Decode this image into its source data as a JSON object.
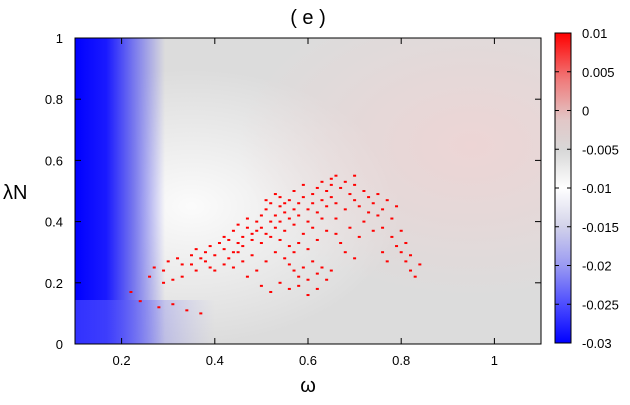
{
  "chart_data": {
    "type": "heatmap",
    "title": "( e )",
    "xlabel": "ω",
    "ylabel": "λN",
    "xlim": [
      0.1,
      1.1
    ],
    "ylim": [
      0,
      1
    ],
    "x_ticks": [
      {
        "value": 0.2,
        "label": "0.2"
      },
      {
        "value": 0.4,
        "label": "0.4"
      },
      {
        "value": 0.6,
        "label": "0.6"
      },
      {
        "value": 0.8,
        "label": "0.8"
      },
      {
        "value": 1.0,
        "label": "1"
      }
    ],
    "y_ticks": [
      {
        "value": 0,
        "label": "0"
      },
      {
        "value": 0.2,
        "label": "0.2"
      },
      {
        "value": 0.4,
        "label": "0.4"
      },
      {
        "value": 0.6,
        "label": "0.6"
      },
      {
        "value": 0.8,
        "label": "0.8"
      },
      {
        "value": 1.0,
        "label": "1"
      }
    ],
    "colorbar": {
      "range": [
        -0.03,
        0.01
      ],
      "ticks": [
        {
          "value": 0.01,
          "label": "0.01"
        },
        {
          "value": 0.005,
          "label": "0.005"
        },
        {
          "value": 0,
          "label": "0"
        },
        {
          "value": -0.005,
          "label": "-0.005"
        },
        {
          "value": -0.01,
          "label": "-0.01"
        },
        {
          "value": -0.015,
          "label": "-0.015"
        },
        {
          "value": -0.02,
          "label": "-0.02"
        },
        {
          "value": -0.025,
          "label": "-0.025"
        },
        {
          "value": -0.03,
          "label": "-0.03"
        }
      ],
      "colors": {
        "low": "#0000ff",
        "mid": "#ffffff",
        "high": "#ff0000"
      },
      "stops": [
        -0.03,
        -0.01,
        0.01
      ]
    },
    "grid": false,
    "legend": "colorbar-right",
    "positive_points": [
      [
        0.22,
        0.17
      ],
      [
        0.24,
        0.14
      ],
      [
        0.28,
        0.12
      ],
      [
        0.31,
        0.13
      ],
      [
        0.34,
        0.11
      ],
      [
        0.37,
        0.1
      ],
      [
        0.26,
        0.22
      ],
      [
        0.27,
        0.25
      ],
      [
        0.29,
        0.24
      ],
      [
        0.3,
        0.27
      ],
      [
        0.32,
        0.28
      ],
      [
        0.33,
        0.26
      ],
      [
        0.35,
        0.29
      ],
      [
        0.36,
        0.31
      ],
      [
        0.37,
        0.28
      ],
      [
        0.38,
        0.3
      ],
      [
        0.39,
        0.32
      ],
      [
        0.4,
        0.29
      ],
      [
        0.41,
        0.33
      ],
      [
        0.42,
        0.31
      ],
      [
        0.42,
        0.35
      ],
      [
        0.43,
        0.34
      ],
      [
        0.44,
        0.3
      ],
      [
        0.44,
        0.37
      ],
      [
        0.45,
        0.33
      ],
      [
        0.45,
        0.39
      ],
      [
        0.46,
        0.35
      ],
      [
        0.46,
        0.32
      ],
      [
        0.47,
        0.38
      ],
      [
        0.47,
        0.41
      ],
      [
        0.48,
        0.36
      ],
      [
        0.48,
        0.34
      ],
      [
        0.49,
        0.4
      ],
      [
        0.49,
        0.37
      ],
      [
        0.5,
        0.42
      ],
      [
        0.5,
        0.38
      ],
      [
        0.5,
        0.33
      ],
      [
        0.51,
        0.44
      ],
      [
        0.51,
        0.36
      ],
      [
        0.52,
        0.4
      ],
      [
        0.52,
        0.46
      ],
      [
        0.52,
        0.35
      ],
      [
        0.53,
        0.42
      ],
      [
        0.53,
        0.38
      ],
      [
        0.54,
        0.45
      ],
      [
        0.54,
        0.4
      ],
      [
        0.54,
        0.48
      ],
      [
        0.55,
        0.43
      ],
      [
        0.55,
        0.37
      ],
      [
        0.56,
        0.47
      ],
      [
        0.56,
        0.41
      ],
      [
        0.57,
        0.44
      ],
      [
        0.57,
        0.5
      ],
      [
        0.57,
        0.39
      ],
      [
        0.58,
        0.46
      ],
      [
        0.58,
        0.42
      ],
      [
        0.59,
        0.48
      ],
      [
        0.59,
        0.52
      ],
      [
        0.6,
        0.44
      ],
      [
        0.6,
        0.4
      ],
      [
        0.61,
        0.49
      ],
      [
        0.61,
        0.46
      ],
      [
        0.62,
        0.51
      ],
      [
        0.62,
        0.43
      ],
      [
        0.63,
        0.47
      ],
      [
        0.63,
        0.53
      ],
      [
        0.64,
        0.45
      ],
      [
        0.64,
        0.5
      ],
      [
        0.65,
        0.48
      ],
      [
        0.65,
        0.52
      ],
      [
        0.66,
        0.46
      ],
      [
        0.66,
        0.41
      ],
      [
        0.67,
        0.51
      ],
      [
        0.68,
        0.53
      ],
      [
        0.68,
        0.44
      ],
      [
        0.69,
        0.49
      ],
      [
        0.7,
        0.47
      ],
      [
        0.7,
        0.52
      ],
      [
        0.71,
        0.45
      ],
      [
        0.72,
        0.5
      ],
      [
        0.73,
        0.43
      ],
      [
        0.73,
        0.48
      ],
      [
        0.74,
        0.46
      ],
      [
        0.75,
        0.42
      ],
      [
        0.75,
        0.49
      ],
      [
        0.76,
        0.44
      ],
      [
        0.76,
        0.38
      ],
      [
        0.77,
        0.47
      ],
      [
        0.78,
        0.35
      ],
      [
        0.78,
        0.41
      ],
      [
        0.79,
        0.32
      ],
      [
        0.79,
        0.45
      ],
      [
        0.8,
        0.3
      ],
      [
        0.8,
        0.37
      ],
      [
        0.81,
        0.27
      ],
      [
        0.81,
        0.33
      ],
      [
        0.82,
        0.24
      ],
      [
        0.82,
        0.29
      ],
      [
        0.83,
        0.22
      ],
      [
        0.84,
        0.26
      ],
      [
        0.76,
        0.3
      ],
      [
        0.77,
        0.27
      ],
      [
        0.55,
        0.28
      ],
      [
        0.56,
        0.26
      ],
      [
        0.57,
        0.24
      ],
      [
        0.58,
        0.22
      ],
      [
        0.59,
        0.25
      ],
      [
        0.6,
        0.21
      ],
      [
        0.61,
        0.27
      ],
      [
        0.62,
        0.23
      ],
      [
        0.63,
        0.25
      ],
      [
        0.64,
        0.21
      ],
      [
        0.65,
        0.24
      ],
      [
        0.53,
        0.3
      ],
      [
        0.51,
        0.27
      ],
      [
        0.49,
        0.24
      ],
      [
        0.47,
        0.22
      ],
      [
        0.5,
        0.19
      ],
      [
        0.52,
        0.17
      ],
      [
        0.54,
        0.2
      ],
      [
        0.56,
        0.18
      ],
      [
        0.58,
        0.19
      ],
      [
        0.6,
        0.16
      ],
      [
        0.62,
        0.18
      ],
      [
        0.48,
        0.29
      ],
      [
        0.46,
        0.27
      ],
      [
        0.44,
        0.25
      ],
      [
        0.42,
        0.26
      ],
      [
        0.4,
        0.24
      ],
      [
        0.43,
        0.28
      ],
      [
        0.45,
        0.3
      ],
      [
        0.66,
        0.36
      ],
      [
        0.67,
        0.33
      ],
      [
        0.69,
        0.38
      ],
      [
        0.71,
        0.35
      ],
      [
        0.72,
        0.4
      ],
      [
        0.74,
        0.37
      ],
      [
        0.68,
        0.3
      ],
      [
        0.7,
        0.28
      ],
      [
        0.64,
        0.37
      ],
      [
        0.62,
        0.34
      ],
      [
        0.6,
        0.31
      ],
      [
        0.58,
        0.33
      ],
      [
        0.59,
        0.36
      ],
      [
        0.61,
        0.38
      ],
      [
        0.63,
        0.41
      ],
      [
        0.55,
        0.46
      ],
      [
        0.53,
        0.49
      ],
      [
        0.51,
        0.47
      ],
      [
        0.65,
        0.54
      ],
      [
        0.66,
        0.55
      ],
      [
        0.7,
        0.55
      ],
      [
        0.56,
        0.32
      ],
      [
        0.57,
        0.3
      ],
      [
        0.54,
        0.34
      ],
      [
        0.35,
        0.26
      ],
      [
        0.38,
        0.27
      ],
      [
        0.39,
        0.25
      ],
      [
        0.36,
        0.24
      ],
      [
        0.33,
        0.22
      ],
      [
        0.31,
        0.21
      ],
      [
        0.29,
        0.2
      ]
    ]
  }
}
